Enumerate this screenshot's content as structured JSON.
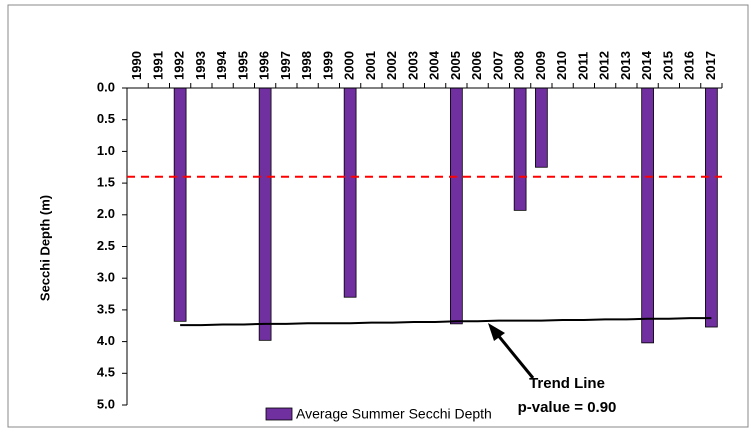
{
  "chart_data": {
    "type": "bar",
    "y_label": "Secchi Depth (m)",
    "categories": [
      "1990",
      "1991",
      "1992",
      "1993",
      "1994",
      "1995",
      "1996",
      "1997",
      "1998",
      "1999",
      "2000",
      "2001",
      "2002",
      "2003",
      "2004",
      "2005",
      "2006",
      "2007",
      "2008",
      "2009",
      "2010",
      "2011",
      "2012",
      "2013",
      "2014",
      "2015",
      "2016",
      "2017"
    ],
    "series": [
      {
        "name": "Average Summer Secchi Depth",
        "color": "#7030a0",
        "values": [
          null,
          null,
          3.68,
          null,
          null,
          null,
          3.98,
          null,
          null,
          null,
          3.3,
          null,
          null,
          null,
          null,
          3.72,
          null,
          null,
          1.93,
          1.25,
          null,
          null,
          null,
          null,
          4.02,
          null,
          null,
          3.77
        ]
      }
    ],
    "trend_line": {
      "color": "#000000",
      "values": [
        null,
        null,
        3.74,
        3.74,
        3.73,
        3.73,
        3.72,
        3.72,
        3.71,
        3.71,
        3.71,
        3.7,
        3.7,
        3.69,
        3.69,
        3.68,
        3.68,
        3.67,
        3.67,
        3.67,
        3.66,
        3.66,
        3.65,
        3.65,
        3.64,
        3.64,
        3.63,
        3.63
      ]
    },
    "reference_line": {
      "value": 1.4,
      "color": "#ff0000"
    },
    "annotations": [
      "Trend Line",
      "p-value = 0.90"
    ],
    "y_inverted": true,
    "ylim": [
      0,
      5
    ],
    "yticks": [
      {
        "value": 0,
        "label": "0.0"
      },
      0.5,
      {
        "value": 1,
        "label": "1.0"
      },
      1.5,
      {
        "value": 2,
        "label": "2.0"
      },
      2.5,
      {
        "value": 3,
        "label": "3.0"
      },
      3.5,
      {
        "value": 4,
        "label": "4.0"
      },
      4.5,
      {
        "value": 5,
        "label": "5.0"
      }
    ],
    "legend": "bottom"
  }
}
